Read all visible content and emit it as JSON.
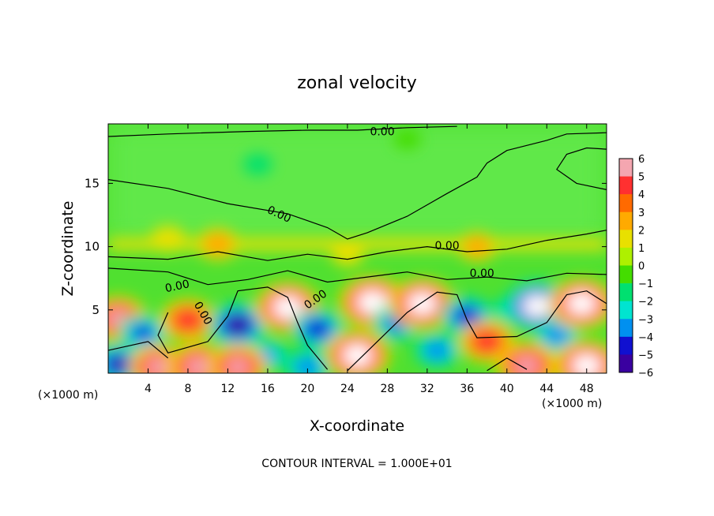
{
  "chart_data": {
    "type": "heatmap",
    "title": "zonal velocity",
    "xlabel": "X-coordinate",
    "ylabel": "Z-coordinate",
    "x_unit_label": "(×1000 m)",
    "x_unit_label_right": "(×1000 m)",
    "x_ticks": [
      4,
      8,
      12,
      16,
      20,
      24,
      28,
      32,
      36,
      40,
      44,
      48
    ],
    "y_ticks": [
      5,
      10,
      15
    ],
    "xlim": [
      0,
      50
    ],
    "ylim": [
      0,
      19.7
    ],
    "colorbar": {
      "ticks": [
        6,
        5,
        4,
        3,
        2,
        1,
        0,
        -1,
        -2,
        -3,
        -4,
        -5,
        -6
      ],
      "range": [
        -6,
        6
      ],
      "colors": [
        "#f4a6b0",
        "#ff3030",
        "#ff6a00",
        "#ffaa00",
        "#e8e000",
        "#aef000",
        "#44dd00",
        "#00e070",
        "#00e4d0",
        "#0090f0",
        "#1010d0",
        "#3a00a0"
      ]
    },
    "contour_labels": [
      "0.00",
      "0.00",
      "0.00",
      "0.00",
      "0.00",
      "0.00",
      "0.00"
    ],
    "footer": "CONTOUR INTERVAL = 1.000E+01",
    "field": {
      "background_color": "#50e030",
      "upper_region_color": "#60e84a",
      "low_level_jet_z": 10.2,
      "features": [
        {
          "x": 1.0,
          "z": 4.3,
          "value": 5.5
        },
        {
          "x": 3.5,
          "z": 3.2,
          "value": -4.0
        },
        {
          "x": 8.0,
          "z": 4.2,
          "value": 5.0
        },
        {
          "x": 13.0,
          "z": 3.8,
          "value": -5.5
        },
        {
          "x": 18.0,
          "z": 5.2,
          "value": 6.5
        },
        {
          "x": 16.0,
          "z": 1.4,
          "value": -3.0
        },
        {
          "x": 21.0,
          "z": 3.5,
          "value": -4.5
        },
        {
          "x": 26.5,
          "z": 5.6,
          "value": 6.8
        },
        {
          "x": 25.0,
          "z": 1.4,
          "value": 6.5
        },
        {
          "x": 29.0,
          "z": 4.0,
          "value": -4.0
        },
        {
          "x": 31.5,
          "z": 5.5,
          "value": 6.5
        },
        {
          "x": 33.0,
          "z": 1.8,
          "value": -3.5
        },
        {
          "x": 36.0,
          "z": 4.5,
          "value": -4.5
        },
        {
          "x": 38.0,
          "z": 2.5,
          "value": 5.0
        },
        {
          "x": 40.5,
          "z": 5.0,
          "value": -2.5
        },
        {
          "x": 43.0,
          "z": 5.3,
          "value": -6.5
        },
        {
          "x": 45.0,
          "z": 3.0,
          "value": -3.5
        },
        {
          "x": 47.5,
          "z": 5.5,
          "value": 6.5
        },
        {
          "x": 1.0,
          "z": 0.7,
          "value": -5.0
        },
        {
          "x": 5.0,
          "z": 0.5,
          "value": 5.5
        },
        {
          "x": 9.0,
          "z": 0.5,
          "value": 6.0
        },
        {
          "x": 13.0,
          "z": 0.5,
          "value": 5.5
        },
        {
          "x": 20.0,
          "z": 0.5,
          "value": -3.5
        },
        {
          "x": 42.0,
          "z": 0.6,
          "value": 6.0
        },
        {
          "x": 48.0,
          "z": 0.6,
          "value": 6.5
        },
        {
          "x": 11.0,
          "z": 10.2,
          "value": 3.0
        },
        {
          "x": 37.0,
          "z": 10.0,
          "value": 2.5
        },
        {
          "x": 6.0,
          "z": 10.6,
          "value": 2.0
        },
        {
          "x": 24.0,
          "z": 9.4,
          "value": 1.5
        },
        {
          "x": 15.0,
          "z": 16.5,
          "value": -1.0
        },
        {
          "x": 30.0,
          "z": 18.5,
          "value": -0.8
        }
      ]
    }
  }
}
